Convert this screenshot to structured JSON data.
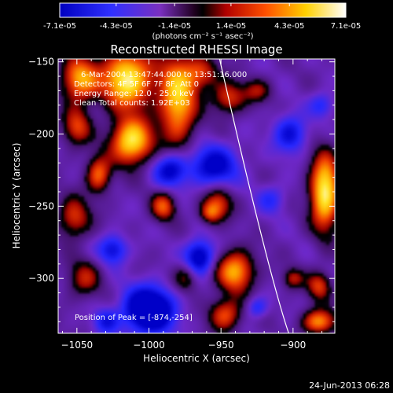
{
  "colorbar": {
    "tick_labels": [
      "-7.1e-05",
      "-4.3e-05",
      "-1.4e-05",
      "1.4e-05",
      "4.3e-05",
      "7.1e-05"
    ],
    "tick_values": [
      -7.1e-05,
      -4.3e-05,
      -1.4e-05,
      1.4e-05,
      4.3e-05,
      7.1e-05
    ],
    "range": [
      -7.1e-05,
      7.1e-05
    ],
    "unit_label": "(photons cm⁻² s⁻¹ asec⁻²)"
  },
  "chart_data": {
    "type": "heatmap",
    "title": "Reconstructed RHESSI Image",
    "xlabel": "Heliocentric X (arcsec)",
    "ylabel": "Heliocentric Y (arcsec)",
    "xlim": [
      -1063,
      -871
    ],
    "ylim": [
      -338,
      -148
    ],
    "x_ticks": [
      -1050,
      -1000,
      -950,
      -900
    ],
    "x_tick_labels": [
      "−1050",
      "−1000",
      "−950",
      "−900"
    ],
    "y_ticks": [
      -300,
      -250,
      -200,
      -150
    ],
    "y_tick_labels": [
      "−300",
      "−250",
      "−200",
      "−150"
    ],
    "annotations": [
      "6-Mar-2004 13:47:44.000 to 13:51:16.000",
      "Detectors: 4F 5F 6F 7F 8F, Att 0",
      "Energy Range: 12.0 - 25.0 keV",
      "Clean    Total counts: 1.92E+03"
    ],
    "peak_label": "Position of Peak = [-874,-254]",
    "peak": [
      -874,
      -254
    ],
    "limb_curve": {
      "x": [
        -951,
        -922,
        -903
      ],
      "y": [
        -148,
        -270,
        -338
      ]
    },
    "blobs": [
      {
        "x": -1048,
        "y": -162,
        "sx": 9,
        "sy": 11,
        "v": 0.75
      },
      {
        "x": -1015,
        "y": -162,
        "sx": 12,
        "sy": 14,
        "v": 1.0
      },
      {
        "x": -980,
        "y": -175,
        "sx": 9,
        "sy": 22,
        "v": 0.85
      },
      {
        "x": -1012,
        "y": -205,
        "sx": 10,
        "sy": 11,
        "v": 0.95
      },
      {
        "x": -1035,
        "y": -228,
        "sx": 6,
        "sy": 9,
        "v": 0.6
      },
      {
        "x": -1050,
        "y": -195,
        "sx": 7,
        "sy": 9,
        "v": 0.5
      },
      {
        "x": -963,
        "y": -158,
        "sx": 8,
        "sy": 8,
        "v": 0.45
      },
      {
        "x": -945,
        "y": -175,
        "sx": 8,
        "sy": 8,
        "v": 0.5
      },
      {
        "x": -990,
        "y": -250,
        "sx": 6,
        "sy": 7,
        "v": 0.55
      },
      {
        "x": -952,
        "y": -248,
        "sx": 7,
        "sy": 8,
        "v": 0.5
      },
      {
        "x": -958,
        "y": -255,
        "sx": 5,
        "sy": 5,
        "v": 0.4
      },
      {
        "x": -940,
        "y": -295,
        "sx": 9,
        "sy": 10,
        "v": 0.75
      },
      {
        "x": -947,
        "y": -325,
        "sx": 8,
        "sy": 8,
        "v": 0.55
      },
      {
        "x": -975,
        "y": -300,
        "sx": 6,
        "sy": 7,
        "v": 0.35
      },
      {
        "x": -1052,
        "y": -258,
        "sx": 8,
        "sy": 10,
        "v": 0.5
      },
      {
        "x": -1045,
        "y": -300,
        "sx": 8,
        "sy": 9,
        "v": 0.4
      },
      {
        "x": -878,
        "y": -240,
        "sx": 7,
        "sy": 18,
        "v": 1.0
      },
      {
        "x": -882,
        "y": -305,
        "sx": 6,
        "sy": 7,
        "v": 0.5
      },
      {
        "x": -882,
        "y": -330,
        "sx": 8,
        "sy": 6,
        "v": 0.7
      },
      {
        "x": -900,
        "y": -300,
        "sx": 5,
        "sy": 5,
        "v": 0.4
      },
      {
        "x": -925,
        "y": -170,
        "sx": 7,
        "sy": 6,
        "v": 0.35
      },
      {
        "x": -1025,
        "y": -280,
        "sx": 7,
        "sy": 7,
        "v": -0.5
      },
      {
        "x": -1000,
        "y": -322,
        "sx": 12,
        "sy": 11,
        "v": -1.0
      },
      {
        "x": -955,
        "y": -222,
        "sx": 12,
        "sy": 10,
        "v": -0.6
      },
      {
        "x": -985,
        "y": -225,
        "sx": 8,
        "sy": 8,
        "v": -0.6
      },
      {
        "x": -965,
        "y": -285,
        "sx": 7,
        "sy": 8,
        "v": -0.7
      },
      {
        "x": -902,
        "y": -200,
        "sx": 8,
        "sy": 9,
        "v": -0.5
      },
      {
        "x": -1030,
        "y": -330,
        "sx": 6,
        "sy": 6,
        "v": -0.4
      },
      {
        "x": -880,
        "y": -180,
        "sx": 6,
        "sy": 6,
        "v": -0.35
      },
      {
        "x": -915,
        "y": -245,
        "sx": 7,
        "sy": 7,
        "v": -0.3
      },
      {
        "x": -925,
        "y": -320,
        "sx": 5,
        "sy": 5,
        "v": -0.35
      }
    ],
    "grid": false,
    "colormap": "RHESSI diverging blue-black-red-yellow-white"
  },
  "footer": {
    "date": "24-Jun-2013 06:28"
  }
}
